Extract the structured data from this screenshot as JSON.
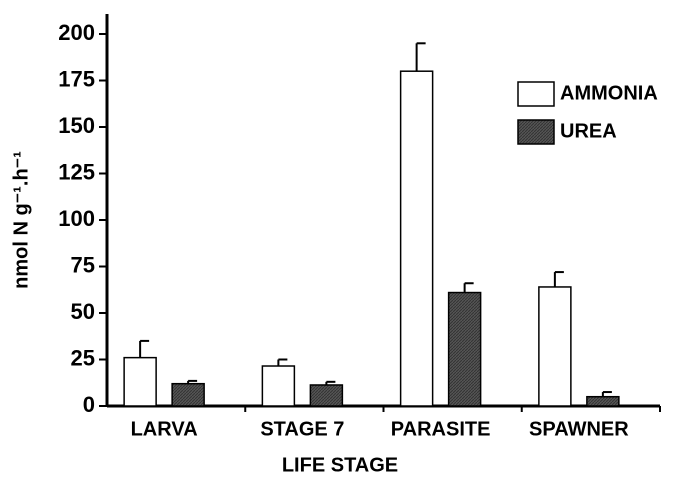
{
  "chart_data": {
    "type": "bar",
    "y_label": "nmol N g⁻¹.h⁻¹",
    "x_label": "LIFE STAGE",
    "categories": [
      "LARVA",
      "STAGE 7",
      "PARASITE",
      "SPAWNER"
    ],
    "series": [
      {
        "name": "AMMONIA",
        "color": "#ffffff",
        "values": [
          26,
          21.5,
          180,
          64
        ],
        "errors": [
          9,
          3.5,
          15,
          8
        ]
      },
      {
        "name": "UREA",
        "color": "#555555",
        "values": [
          12,
          11.3,
          61,
          5
        ],
        "errors": [
          1.5,
          1.7,
          5,
          2.5
        ]
      }
    ],
    "ylim": [
      0,
      200
    ],
    "yticks": [
      0,
      25,
      50,
      75,
      100,
      125,
      150,
      175,
      200
    ],
    "legend": "upper right"
  }
}
